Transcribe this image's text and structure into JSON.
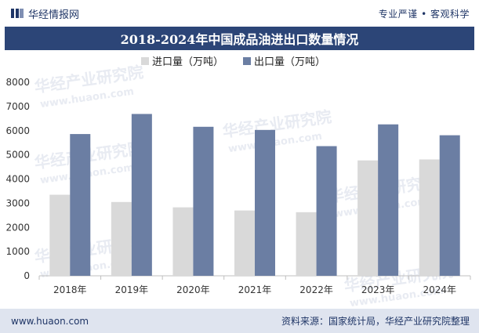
{
  "header": {
    "brand": "华经情报网",
    "slogan": "专业严谨 • 客观科学"
  },
  "title": "2018-2024年中国成品油进出口数量情况",
  "footer": {
    "website": "www.huaon.com",
    "source": "资料来源：国家统计局，华经产业研究院整理"
  },
  "watermark": {
    "cn": "华经产业研究院",
    "en": "www.huaon.com"
  },
  "colors": {
    "import": "#d9d9d9",
    "export": "#6b7ea3",
    "title_bg": "#2c4577",
    "footer_bg": "#dfe4ef"
  },
  "chart_data": {
    "type": "bar",
    "categories": [
      "2018年",
      "2019年",
      "2020年",
      "2021年",
      "2022年",
      "2023年",
      "2024年"
    ],
    "series": [
      {
        "name": "进口量（万吨）",
        "values": [
          3350,
          3050,
          2830,
          2700,
          2630,
          4770,
          4810
        ]
      },
      {
        "name": "出口量（万吨）",
        "values": [
          5860,
          6690,
          6160,
          6030,
          5360,
          6260,
          5810
        ]
      }
    ],
    "yticks": [
      0,
      1000,
      2000,
      3000,
      4000,
      5000,
      6000,
      7000,
      8000
    ],
    "ylim": [
      0,
      8000
    ],
    "legend": "top-left",
    "grid": false
  }
}
